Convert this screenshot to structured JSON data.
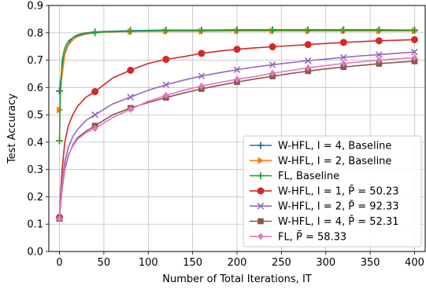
{
  "chart_data": {
    "type": "line",
    "xlabel": "Number of Total Iterations, IT",
    "ylabel": "Test Accuracy",
    "xlim": [
      -12,
      412
    ],
    "ylim": [
      0.0,
      0.9
    ],
    "xticks": [
      "0",
      "50",
      "100",
      "150",
      "200",
      "250",
      "300",
      "350",
      "400"
    ],
    "yticks": [
      "0.0",
      "0.1",
      "0.2",
      "0.3",
      "0.4",
      "0.5",
      "0.6",
      "0.7",
      "0.8",
      "0.9"
    ],
    "grid": true,
    "legend_position": "lower-right",
    "series": [
      {
        "name": "W-HFL, I = 4, Baseline",
        "color": "#1f77b4",
        "marker": "plus",
        "x": [
          0,
          4,
          8,
          12,
          16,
          20,
          25,
          30,
          40,
          50,
          80,
          120,
          160,
          200,
          240,
          280,
          320,
          360,
          400
        ],
        "y": [
          0.587,
          0.7,
          0.745,
          0.77,
          0.785,
          0.792,
          0.797,
          0.8,
          0.803,
          0.805,
          0.808,
          0.81,
          0.81,
          0.811,
          0.811,
          0.811,
          0.811,
          0.811,
          0.81
        ]
      },
      {
        "name": "W-HFL, I = 2, Baseline",
        "color": "#ff7f0e",
        "marker": "triangle-right",
        "x": [
          0,
          2,
          6,
          10,
          14,
          18,
          24,
          30,
          38,
          50,
          80,
          120,
          160,
          200,
          240,
          280,
          320,
          360,
          400
        ],
        "y": [
          0.518,
          0.62,
          0.72,
          0.755,
          0.77,
          0.782,
          0.79,
          0.795,
          0.8,
          0.803,
          0.805,
          0.806,
          0.806,
          0.807,
          0.807,
          0.807,
          0.807,
          0.807,
          0.807
        ]
      },
      {
        "name": "FL, Baseline",
        "color": "#2ca02c",
        "marker": "plus",
        "x": [
          0,
          1,
          3,
          6,
          10,
          14,
          20,
          30,
          40,
          50,
          80,
          120,
          160,
          200,
          240,
          280,
          320,
          360,
          400
        ],
        "y": [
          0.405,
          0.58,
          0.7,
          0.745,
          0.77,
          0.78,
          0.79,
          0.798,
          0.8,
          0.803,
          0.806,
          0.808,
          0.808,
          0.809,
          0.809,
          0.809,
          0.809,
          0.809,
          0.809
        ]
      },
      {
        "name": "W-HFL, I = 1, P̄ = 50.23",
        "color": "#d62728",
        "marker": "circle",
        "x": [
          0,
          1,
          3,
          6,
          10,
          15,
          20,
          30,
          40,
          60,
          80,
          100,
          120,
          140,
          160,
          180,
          200,
          220,
          240,
          260,
          280,
          300,
          320,
          340,
          360,
          380,
          400
        ],
        "y": [
          0.125,
          0.2,
          0.3,
          0.4,
          0.46,
          0.5,
          0.53,
          0.565,
          0.585,
          0.635,
          0.663,
          0.688,
          0.703,
          0.713,
          0.725,
          0.733,
          0.74,
          0.745,
          0.749,
          0.753,
          0.757,
          0.761,
          0.765,
          0.768,
          0.771,
          0.773,
          0.775
        ]
      },
      {
        "name": "W-HFL, I = 2, P̄ = 92.33",
        "color": "#9467bd",
        "marker": "x",
        "x": [
          0,
          1,
          3,
          6,
          10,
          15,
          20,
          30,
          40,
          60,
          80,
          100,
          120,
          140,
          160,
          180,
          200,
          220,
          240,
          260,
          280,
          300,
          320,
          340,
          360,
          380,
          400
        ],
        "y": [
          0.12,
          0.18,
          0.26,
          0.33,
          0.38,
          0.42,
          0.445,
          0.48,
          0.5,
          0.54,
          0.565,
          0.59,
          0.61,
          0.627,
          0.642,
          0.654,
          0.665,
          0.675,
          0.683,
          0.691,
          0.698,
          0.704,
          0.71,
          0.716,
          0.72,
          0.725,
          0.73
        ]
      },
      {
        "name": "W-HFL, I = 4, P̄ = 52.31",
        "color": "#8c564b",
        "marker": "square",
        "x": [
          0,
          1,
          3,
          6,
          10,
          15,
          20,
          30,
          40,
          60,
          80,
          100,
          120,
          140,
          160,
          180,
          200,
          220,
          240,
          260,
          280,
          300,
          320,
          340,
          360,
          380,
          400
        ],
        "y": [
          0.12,
          0.16,
          0.23,
          0.3,
          0.35,
          0.39,
          0.415,
          0.44,
          0.46,
          0.5,
          0.525,
          0.545,
          0.563,
          0.58,
          0.595,
          0.608,
          0.62,
          0.631,
          0.641,
          0.651,
          0.66,
          0.668,
          0.675,
          0.681,
          0.687,
          0.692,
          0.696
        ]
      },
      {
        "name": "FL, P̄ = 58.33",
        "color": "#e377c2",
        "marker": "diamond",
        "x": [
          0,
          1,
          3,
          6,
          10,
          15,
          20,
          30,
          40,
          60,
          80,
          100,
          120,
          140,
          160,
          180,
          200,
          220,
          240,
          260,
          280,
          300,
          320,
          340,
          360,
          380,
          400
        ],
        "y": [
          0.12,
          0.17,
          0.24,
          0.31,
          0.355,
          0.385,
          0.41,
          0.435,
          0.45,
          0.49,
          0.52,
          0.55,
          0.571,
          0.59,
          0.605,
          0.618,
          0.63,
          0.64,
          0.652,
          0.662,
          0.672,
          0.68,
          0.688,
          0.694,
          0.7,
          0.705,
          0.709
        ]
      }
    ]
  }
}
